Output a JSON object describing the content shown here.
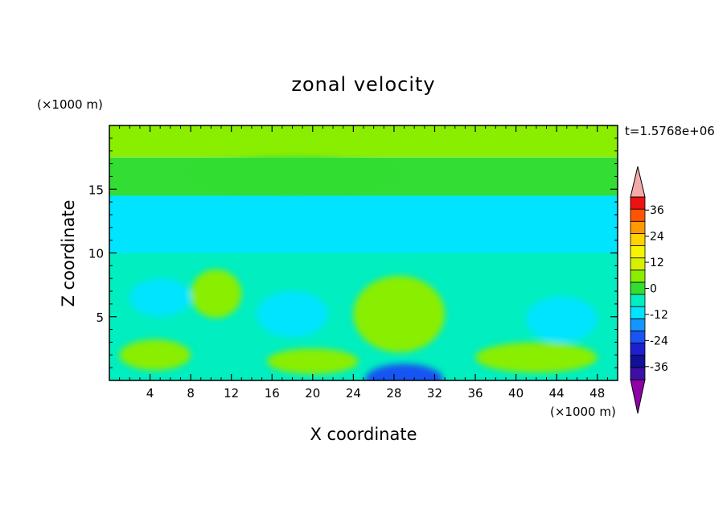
{
  "chart_data": {
    "type": "heatmap",
    "title": "zonal velocity",
    "xlabel": "X coordinate",
    "ylabel": "Z coordinate",
    "x_unit": "(×1000 m)",
    "y_unit": "(×1000 m)",
    "time_label": "t=1.5768e+06",
    "xlim": [
      0,
      50
    ],
    "ylim": [
      0,
      20
    ],
    "x_ticks": [
      "4",
      "8",
      "12",
      "16",
      "20",
      "24",
      "28",
      "32",
      "36",
      "40",
      "44",
      "48"
    ],
    "y_ticks": [
      "5",
      "10",
      "15"
    ],
    "colorbar": {
      "ticks": [
        "36",
        "24",
        "12",
        "0",
        "-12",
        "-24",
        "-36"
      ],
      "levels": [
        -42,
        -36,
        -30,
        -24,
        -18,
        -12,
        -6,
        0,
        6,
        12,
        18,
        24,
        30,
        36,
        42
      ],
      "colors": [
        "#8e00a8",
        "#3d0fa6",
        "#10109a",
        "#1f1fd0",
        "#1955f2",
        "#1596ff",
        "#00e4ff",
        "#00eec0",
        "#33dd33",
        "#8aee00",
        "#d6f000",
        "#f5f500",
        "#ffd200",
        "#ff9900",
        "#ff5500",
        "#ee1111",
        "#f5aaaa"
      ]
    },
    "field_bands": [
      {
        "z": [
          17.5,
          19.6
        ],
        "value": 9
      },
      {
        "z": [
          14.5,
          17.5
        ],
        "value": 3
      },
      {
        "z": [
          10.0,
          14.5
        ],
        "value": -7
      },
      {
        "z": [
          0,
          10.0
        ],
        "value": -2
      }
    ],
    "features": [
      {
        "x": 10.5,
        "z": 6.8,
        "rx": 2.5,
        "rz": 1.9,
        "value": 9
      },
      {
        "x": 28.5,
        "z": 5.2,
        "rx": 4.5,
        "rz": 3.0,
        "value": 9
      },
      {
        "x": 4.5,
        "z": 2.0,
        "rx": 3.5,
        "rz": 1.2,
        "value": 7
      },
      {
        "x": 20.0,
        "z": 1.5,
        "rx": 4.5,
        "rz": 1.0,
        "value": 6
      },
      {
        "x": 42.0,
        "z": 1.8,
        "rx": 6.0,
        "rz": 1.2,
        "value": 6
      },
      {
        "x": 29.0,
        "z": 0.1,
        "rx": 3.8,
        "rz": 1.2,
        "value": -20
      },
      {
        "x": 44.5,
        "z": 4.8,
        "rx": 3.5,
        "rz": 1.8,
        "value": -11
      },
      {
        "x": 5.0,
        "z": 6.5,
        "rx": 3.0,
        "rz": 1.5,
        "value": -9
      },
      {
        "x": 18.0,
        "z": 5.2,
        "rx": 3.5,
        "rz": 1.8,
        "value": -9
      },
      {
        "x": 22.0,
        "z": 12.5,
        "rx": 12.0,
        "rz": 1.2,
        "value": -10
      },
      {
        "x": 18.0,
        "z": 16.2,
        "rx": 10.0,
        "rz": 1.3,
        "value": 2
      }
    ]
  }
}
